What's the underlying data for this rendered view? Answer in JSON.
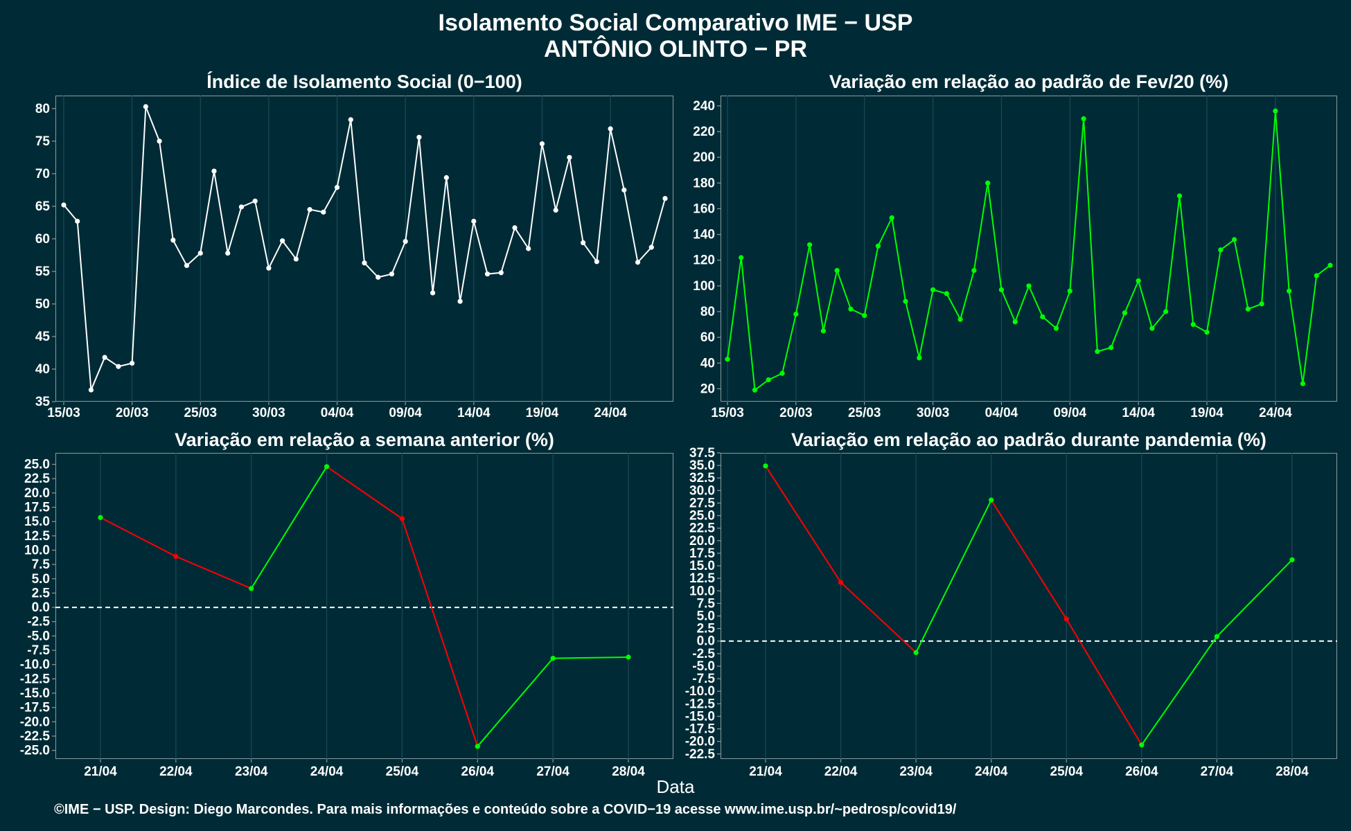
{
  "header": {
    "title": "Isolamento Social Comparativo IME − USP",
    "subtitle": "ANTÔNIO OLINTO − PR"
  },
  "xlabel": "Data",
  "footer": "©IME − USP. Design: Diego Marcondes. Para mais informações e conteúdo sobre a COVID−19 acesse www.ime.usp.br/~pedrosp/covid19/",
  "colors": {
    "background": "#002b36",
    "white": "#ffffff",
    "green": "#00ff00",
    "red": "#ff0000",
    "grid": "#1a4a55"
  },
  "chart_data": [
    {
      "id": "p1",
      "type": "line",
      "title": "Índice de Isolamento Social (0−100)",
      "x_ticklabels": [
        "15/03",
        "20/03",
        "25/03",
        "30/03",
        "04/04",
        "09/04",
        "14/04",
        "19/04",
        "24/04"
      ],
      "x_tick_index": [
        0,
        5,
        10,
        15,
        20,
        25,
        30,
        35,
        40
      ],
      "ylim": [
        35,
        82
      ],
      "yticks": [
        35,
        40,
        45,
        50,
        55,
        60,
        65,
        70,
        75,
        80
      ],
      "series": [
        {
          "color": "#ffffff",
          "values": [
            65.2,
            62.7,
            36.8,
            41.8,
            40.4,
            40.9,
            80.3,
            75.0,
            59.8,
            55.9,
            57.8,
            70.4,
            57.8,
            64.9,
            65.8,
            55.5,
            59.7,
            56.9,
            64.5,
            64.1,
            67.9,
            78.3,
            56.3,
            54.1,
            54.6,
            59.6,
            75.6,
            51.7,
            69.4,
            50.4,
            62.7,
            54.6,
            54.8,
            61.7,
            58.5,
            74.6,
            64.4,
            72.5,
            59.4,
            56.5,
            76.9,
            67.5,
            56.4,
            58.7,
            66.2
          ]
        }
      ],
      "grid": true
    },
    {
      "id": "p2",
      "type": "line",
      "title": "Variação em relação ao padrão de Fev/20 (%)",
      "x_ticklabels": [
        "15/03",
        "20/03",
        "25/03",
        "30/03",
        "04/04",
        "09/04",
        "14/04",
        "19/04",
        "24/04"
      ],
      "x_tick_index": [
        0,
        5,
        10,
        15,
        20,
        25,
        30,
        35,
        40
      ],
      "ylim": [
        10,
        248
      ],
      "yticks": [
        20,
        40,
        60,
        80,
        100,
        120,
        140,
        160,
        180,
        200,
        220,
        240
      ],
      "series": [
        {
          "color": "#00ff00",
          "values": [
            43,
            122,
            19,
            27,
            32,
            78,
            132,
            65,
            112,
            82,
            77,
            131,
            153,
            88,
            44,
            97,
            94,
            74,
            112,
            180,
            97,
            72,
            100,
            76,
            67,
            96,
            230,
            49,
            52,
            79,
            104,
            67,
            80,
            170,
            70,
            64,
            128,
            136,
            82,
            86,
            236,
            96,
            24,
            108,
            116
          ]
        }
      ],
      "grid": true
    },
    {
      "id": "p3",
      "type": "line",
      "title": "Variação em relação a semana anterior (%)",
      "categories": [
        "21/04",
        "22/04",
        "23/04",
        "24/04",
        "25/04",
        "26/04",
        "27/04",
        "28/04"
      ],
      "ylim": [
        -26.5,
        27
      ],
      "yticks": [
        -25,
        -22.5,
        -20,
        -17.5,
        -15,
        -12.5,
        -10,
        -7.5,
        -5,
        -2.5,
        0,
        2.5,
        5,
        7.5,
        10,
        12.5,
        15,
        17.5,
        20,
        22.5,
        25
      ],
      "values": [
        15.7,
        8.9,
        3.3,
        24.6,
        15.5,
        -24.3,
        -8.9,
        -8.7
      ],
      "reference_line": 0,
      "positive_color": "#00ff00",
      "negative_color": "#ff0000",
      "grid": true
    },
    {
      "id": "p4",
      "type": "line",
      "title": "Variação em relação ao padrão durante pandemia (%)",
      "categories": [
        "21/04",
        "22/04",
        "23/04",
        "24/04",
        "25/04",
        "26/04",
        "27/04",
        "28/04"
      ],
      "ylim": [
        -23.5,
        37.5
      ],
      "yticks": [
        -22.5,
        -20,
        -17.5,
        -15,
        -12.5,
        -10,
        -7.5,
        -5,
        -2.5,
        0,
        2.5,
        5,
        7.5,
        10,
        12.5,
        15,
        17.5,
        20,
        22.5,
        25,
        27.5,
        30,
        32.5,
        35,
        37.5
      ],
      "values": [
        34.9,
        11.7,
        -2.3,
        28.1,
        4.4,
        -20.7,
        0.9,
        16.2
      ],
      "reference_line": 0,
      "positive_color": "#00ff00",
      "negative_color": "#ff0000",
      "grid": true
    }
  ]
}
